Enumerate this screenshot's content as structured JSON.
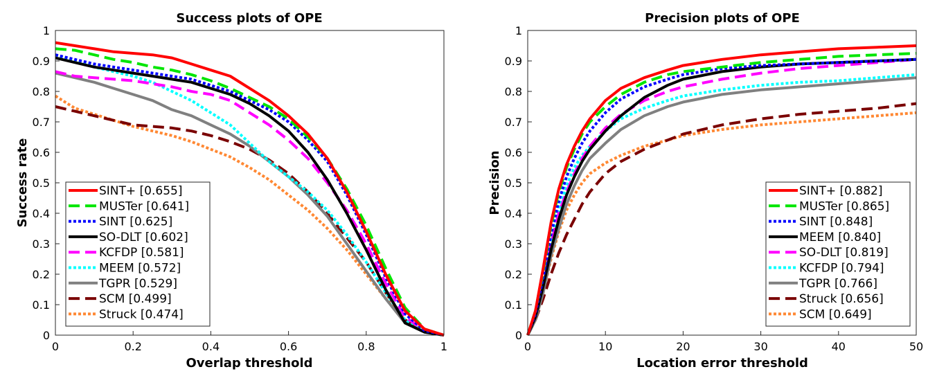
{
  "chart_data": [
    {
      "type": "line",
      "title": "Success plots of OPE",
      "xlabel": "Overlap threshold",
      "ylabel": "Success rate",
      "xlim": [
        0,
        1
      ],
      "ylim": [
        0,
        1
      ],
      "xticks": [
        "0",
        "0.2",
        "0.4",
        "0.6",
        "0.8",
        "1"
      ],
      "yticks": [
        "0",
        "0.1",
        "0.2",
        "0.3",
        "0.4",
        "0.5",
        "0.6",
        "0.7",
        "0.8",
        "0.9",
        "1"
      ],
      "grid": false,
      "legend_position": "bottom-left",
      "x": [
        0,
        0.05,
        0.1,
        0.15,
        0.2,
        0.25,
        0.3,
        0.35,
        0.4,
        0.45,
        0.5,
        0.55,
        0.6,
        0.65,
        0.7,
        0.75,
        0.8,
        0.85,
        0.9,
        0.95,
        1.0
      ],
      "series": [
        {
          "name": "SINT+ [0.655]",
          "color": "#ff0000",
          "style": "solid",
          "values": [
            0.96,
            0.95,
            0.94,
            0.93,
            0.925,
            0.92,
            0.91,
            0.89,
            0.87,
            0.85,
            0.81,
            0.77,
            0.72,
            0.66,
            0.58,
            0.47,
            0.34,
            0.2,
            0.08,
            0.02,
            0.0
          ]
        },
        {
          "name": "MUSTer [0.641]",
          "color": "#00e600",
          "style": "dashed",
          "values": [
            0.94,
            0.935,
            0.92,
            0.905,
            0.895,
            0.88,
            0.87,
            0.855,
            0.835,
            0.81,
            0.78,
            0.75,
            0.71,
            0.65,
            0.58,
            0.48,
            0.36,
            0.22,
            0.09,
            0.02,
            0.0
          ]
        },
        {
          "name": "SINT [0.625]",
          "color": "#0000ff",
          "style": "dotted",
          "values": [
            0.92,
            0.905,
            0.89,
            0.88,
            0.87,
            0.86,
            0.85,
            0.84,
            0.82,
            0.8,
            0.77,
            0.74,
            0.7,
            0.64,
            0.57,
            0.46,
            0.33,
            0.19,
            0.07,
            0.015,
            0.0
          ]
        },
        {
          "name": "SO-DLT [0.602]",
          "color": "#000000",
          "style": "solid",
          "values": [
            0.91,
            0.895,
            0.88,
            0.87,
            0.86,
            0.85,
            0.84,
            0.83,
            0.81,
            0.79,
            0.76,
            0.72,
            0.67,
            0.6,
            0.51,
            0.4,
            0.28,
            0.15,
            0.04,
            0.01,
            0.0
          ]
        },
        {
          "name": "KCFDP [0.581]",
          "color": "#ff00ff",
          "style": "dashed",
          "values": [
            0.865,
            0.85,
            0.845,
            0.84,
            0.835,
            0.825,
            0.815,
            0.8,
            0.79,
            0.77,
            0.73,
            0.69,
            0.64,
            0.58,
            0.5,
            0.41,
            0.3,
            0.17,
            0.06,
            0.015,
            0.0
          ]
        },
        {
          "name": "MEEM [0.572]",
          "color": "#00ffff",
          "style": "dotted",
          "values": [
            0.92,
            0.9,
            0.88,
            0.865,
            0.85,
            0.83,
            0.8,
            0.77,
            0.73,
            0.69,
            0.63,
            0.57,
            0.52,
            0.47,
            0.41,
            0.33,
            0.24,
            0.14,
            0.05,
            0.01,
            0.0
          ]
        },
        {
          "name": "TGPR [0.529]",
          "color": "#808080",
          "style": "solid",
          "values": [
            0.86,
            0.845,
            0.83,
            0.81,
            0.79,
            0.77,
            0.74,
            0.72,
            0.69,
            0.66,
            0.62,
            0.57,
            0.52,
            0.46,
            0.39,
            0.3,
            0.21,
            0.12,
            0.04,
            0.01,
            0.0
          ]
        },
        {
          "name": "SCM [0.499]",
          "color": "#7a0000",
          "style": "dashed",
          "values": [
            0.75,
            0.735,
            0.72,
            0.705,
            0.69,
            0.685,
            0.68,
            0.67,
            0.655,
            0.635,
            0.61,
            0.575,
            0.53,
            0.47,
            0.4,
            0.32,
            0.24,
            0.14,
            0.05,
            0.01,
            0.0
          ]
        },
        {
          "name": "Struck [0.474]",
          "color": "#ff8833",
          "style": "dotted",
          "values": [
            0.785,
            0.745,
            0.725,
            0.705,
            0.685,
            0.67,
            0.655,
            0.635,
            0.61,
            0.585,
            0.55,
            0.51,
            0.46,
            0.41,
            0.35,
            0.28,
            0.2,
            0.12,
            0.05,
            0.015,
            0.0
          ]
        }
      ]
    },
    {
      "type": "line",
      "title": "Precision plots of OPE",
      "xlabel": "Location error threshold",
      "ylabel": "Precision",
      "xlim": [
        0,
        50
      ],
      "ylim": [
        0,
        1
      ],
      "xticks": [
        "0",
        "10",
        "20",
        "30",
        "40",
        "50"
      ],
      "yticks": [
        "0",
        "0.1",
        "0.2",
        "0.3",
        "0.4",
        "0.5",
        "0.6",
        "0.7",
        "0.8",
        "0.9",
        "1"
      ],
      "grid": false,
      "legend_position": "bottom-right",
      "x": [
        0,
        1,
        2,
        3,
        4,
        5,
        6,
        7,
        8,
        10,
        12,
        15,
        18,
        20,
        25,
        30,
        35,
        40,
        45,
        50
      ],
      "series": [
        {
          "name": "SINT+ [0.882]",
          "color": "#ff0000",
          "style": "solid",
          "values": [
            0.0,
            0.08,
            0.22,
            0.37,
            0.48,
            0.56,
            0.62,
            0.67,
            0.71,
            0.77,
            0.81,
            0.845,
            0.87,
            0.885,
            0.905,
            0.92,
            0.93,
            0.94,
            0.945,
            0.95
          ]
        },
        {
          "name": "MUSTer [0.865]",
          "color": "#00e600",
          "style": "dashed",
          "values": [
            0.0,
            0.08,
            0.21,
            0.36,
            0.47,
            0.55,
            0.61,
            0.66,
            0.7,
            0.75,
            0.79,
            0.83,
            0.855,
            0.865,
            0.88,
            0.895,
            0.905,
            0.915,
            0.92,
            0.925
          ]
        },
        {
          "name": "SINT [0.848]",
          "color": "#0000ff",
          "style": "dotted",
          "values": [
            0.0,
            0.07,
            0.19,
            0.33,
            0.44,
            0.52,
            0.58,
            0.63,
            0.67,
            0.73,
            0.775,
            0.815,
            0.84,
            0.855,
            0.875,
            0.885,
            0.89,
            0.895,
            0.9,
            0.905
          ]
        },
        {
          "name": "MEEM [0.840]",
          "color": "#000000",
          "style": "solid",
          "values": [
            0.0,
            0.06,
            0.16,
            0.28,
            0.38,
            0.46,
            0.52,
            0.57,
            0.61,
            0.67,
            0.72,
            0.78,
            0.82,
            0.84,
            0.865,
            0.88,
            0.89,
            0.895,
            0.9,
            0.905
          ]
        },
        {
          "name": "SO-DLT [0.819]",
          "color": "#ff00ff",
          "style": "dashed",
          "values": [
            0.0,
            0.07,
            0.18,
            0.3,
            0.4,
            0.47,
            0.53,
            0.58,
            0.62,
            0.68,
            0.725,
            0.77,
            0.8,
            0.815,
            0.84,
            0.86,
            0.875,
            0.885,
            0.895,
            0.905
          ]
        },
        {
          "name": "KCFDP [0.794]",
          "color": "#00ffff",
          "style": "dotted",
          "values": [
            0.0,
            0.07,
            0.18,
            0.31,
            0.41,
            0.49,
            0.55,
            0.59,
            0.62,
            0.67,
            0.71,
            0.745,
            0.77,
            0.785,
            0.805,
            0.82,
            0.83,
            0.835,
            0.845,
            0.855
          ]
        },
        {
          "name": "TGPR [0.766]",
          "color": "#808080",
          "style": "solid",
          "values": [
            0.0,
            0.05,
            0.14,
            0.26,
            0.35,
            0.43,
            0.49,
            0.54,
            0.58,
            0.63,
            0.675,
            0.72,
            0.75,
            0.765,
            0.79,
            0.805,
            0.815,
            0.825,
            0.835,
            0.845
          ]
        },
        {
          "name": "Struck [0.656]",
          "color": "#7a0000",
          "style": "dashed",
          "values": [
            0.0,
            0.05,
            0.12,
            0.2,
            0.27,
            0.33,
            0.38,
            0.43,
            0.47,
            0.53,
            0.57,
            0.61,
            0.64,
            0.66,
            0.69,
            0.71,
            0.725,
            0.735,
            0.745,
            0.76
          ]
        },
        {
          "name": "SCM [0.649]",
          "color": "#ff8833",
          "style": "dotted",
          "values": [
            0.0,
            0.05,
            0.14,
            0.25,
            0.34,
            0.41,
            0.46,
            0.5,
            0.53,
            0.565,
            0.59,
            0.62,
            0.64,
            0.655,
            0.675,
            0.69,
            0.7,
            0.71,
            0.72,
            0.73
          ]
        }
      ]
    }
  ]
}
